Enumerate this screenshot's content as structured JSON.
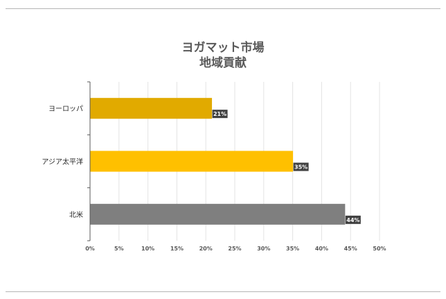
{
  "chart_data": {
    "type": "bar",
    "orientation": "horizontal",
    "title": [
      "ヨガマット市場",
      "地域貢献"
    ],
    "categories": [
      "ヨーロッパ",
      "アジア太平洋",
      "北米"
    ],
    "values": [
      21,
      35,
      44
    ],
    "data_labels": [
      "21%",
      "35%",
      "44%"
    ],
    "colors": [
      "#E1AA00",
      "#FFC000",
      "#7F7F7F"
    ],
    "xlim": [
      0,
      50
    ],
    "x_ticks": [
      "0%",
      "5%",
      "10%",
      "15%",
      "20%",
      "25%",
      "30%",
      "35%",
      "40%",
      "45%",
      "50%"
    ],
    "grid": true,
    "legend": "none"
  }
}
